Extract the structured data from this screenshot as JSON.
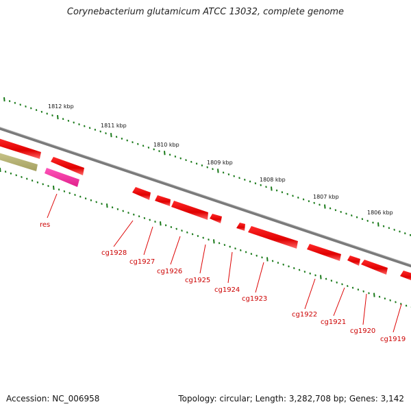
{
  "title": "Corynebacterium glutamicum ATCC 13032, complete genome",
  "footer": {
    "accession": "Accession: NC_006958",
    "summary": "Topology: circular; Length: 3,282,708 bp; Genes: 3,142"
  },
  "colors": {
    "gene": "#ff0000",
    "rna": "#ff1493",
    "pseudo": "#b5b36a",
    "ticks": "#1a7a1a",
    "backbone": "#808080",
    "label": "#cc0000"
  },
  "ruler_labels": [
    "1812 kbp",
    "1811 kbp",
    "1810 kbp",
    "1809 kbp",
    "1808 kbp",
    "1807 kbp",
    "1806 kbp"
  ],
  "gene_labels": [
    "res",
    "cg1928",
    "cg1927",
    "cg1926",
    "cg1925",
    "cg1924",
    "cg1923",
    "cg1922",
    "cg1921",
    "cg1920",
    "cg1919"
  ]
}
